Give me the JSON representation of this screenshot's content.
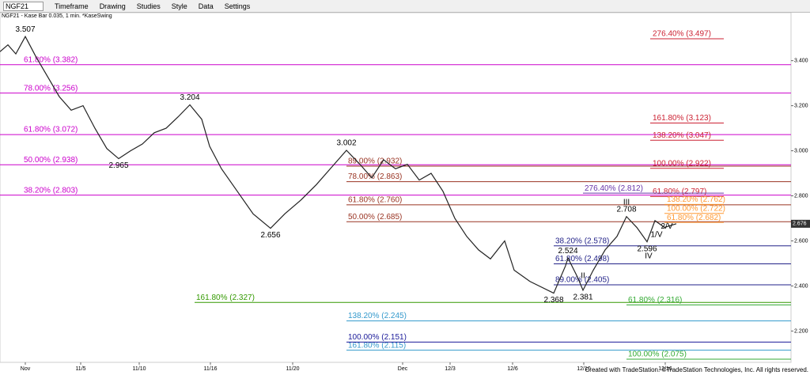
{
  "toolbar": {
    "symbol": "NGF21",
    "items": [
      "Timeframe",
      "Drawing",
      "Studies",
      "Style",
      "Data",
      "Settings"
    ]
  },
  "footer": "Created with TradeStation. ©TradeStation Technologies, Inc. All rights reserved.",
  "chart_data": {
    "type": "line",
    "title": "NGF21 - Kase Bar 0.035, 1 min. *KaseSwing",
    "color": "#222222",
    "x": [
      0,
      10,
      20,
      32,
      45,
      60,
      75,
      90,
      105,
      120,
      135,
      150,
      165,
      180,
      195,
      210,
      225,
      240,
      255,
      265,
      280,
      300,
      320,
      342,
      360,
      380,
      400,
      420,
      438,
      455,
      470,
      485,
      500,
      515,
      530,
      545,
      560,
      575,
      590,
      605,
      620,
      638,
      650,
      670,
      700,
      715,
      718,
      730,
      737,
      750,
      765,
      780,
      792,
      805,
      818,
      828,
      840,
      855
    ],
    "values": [
      3.44,
      3.47,
      3.43,
      3.507,
      3.42,
      3.33,
      3.24,
      3.18,
      3.2,
      3.1,
      3.01,
      2.965,
      3.0,
      3.03,
      3.08,
      3.1,
      3.15,
      3.204,
      3.14,
      3.02,
      2.92,
      2.82,
      2.72,
      2.656,
      2.72,
      2.78,
      2.85,
      2.93,
      3.002,
      2.94,
      2.88,
      2.96,
      2.92,
      2.94,
      2.87,
      2.9,
      2.82,
      2.7,
      2.62,
      2.56,
      2.52,
      2.6,
      2.47,
      2.42,
      2.368,
      2.49,
      2.524,
      2.44,
      2.381,
      2.47,
      2.56,
      2.62,
      2.708,
      2.66,
      2.596,
      2.69,
      2.66,
      2.676
    ],
    "last_price": 2.676,
    "xlim": [
      0,
      1000
    ],
    "ylim": [
      2.061,
      3.613
    ],
    "xticks": [
      {
        "value": 32,
        "label": "Nov"
      },
      {
        "value": 102,
        "label": "11/5"
      },
      {
        "value": 176,
        "label": "11/10"
      },
      {
        "value": 266,
        "label": "11/16"
      },
      {
        "value": 370,
        "label": "11/20"
      },
      {
        "value": 509,
        "label": "Dec"
      },
      {
        "value": 569,
        "label": "12/3"
      },
      {
        "value": 648,
        "label": "12/6"
      },
      {
        "value": 738,
        "label": "12/10"
      },
      {
        "value": 841,
        "label": "12/16"
      }
    ],
    "yticks": [
      {
        "value": 2.2,
        "label": "2.200"
      },
      {
        "value": 2.4,
        "label": "2.400"
      },
      {
        "value": 2.6,
        "label": "2.600"
      },
      {
        "value": 2.8,
        "label": "2.800"
      },
      {
        "value": 3.0,
        "label": "3.000"
      },
      {
        "value": 3.2,
        "label": "3.200"
      },
      {
        "value": 3.4,
        "label": "3.400"
      }
    ],
    "swings": [
      {
        "x": 32,
        "value": 3.507
      },
      {
        "x": 150,
        "value": 2.965
      },
      {
        "x": 240,
        "value": 3.204
      },
      {
        "x": 342,
        "value": 2.656
      },
      {
        "x": 438,
        "value": 3.002
      },
      {
        "x": 700,
        "value": 2.368
      },
      {
        "x": 718,
        "value": 2.524
      },
      {
        "x": 737,
        "value": 2.381
      },
      {
        "x": 792,
        "value": 2.708
      },
      {
        "x": 818,
        "value": 2.596
      }
    ],
    "wave_labels": [
      {
        "x": 792,
        "value": 2.708,
        "label": "III"
      },
      {
        "x": 830,
        "value": 2.69,
        "label": "1/V"
      },
      {
        "x": 843,
        "value": 2.6,
        "label": "2/V"
      },
      {
        "x": 820,
        "value": 2.596,
        "label": "IV"
      },
      {
        "x": 737,
        "value": 2.381,
        "label": "II"
      }
    ],
    "level_groups": [
      {
        "color": "#cc00cc",
        "start": 0,
        "end": 1000,
        "levels": [
          {
            "value": 3.382,
            "label": "61.80% (3.382)"
          },
          {
            "value": 3.256,
            "label": "78.00% (3.256)"
          },
          {
            "value": 3.072,
            "label": "61.80% (3.072)"
          },
          {
            "value": 2.938,
            "label": "50.00% (2.938)"
          },
          {
            "value": 2.803,
            "label": "38.20% (2.803)"
          }
        ]
      },
      {
        "color": "#339900",
        "start": 246,
        "end": 1000,
        "levels": [
          {
            "value": 2.327,
            "label": "161.80% (2.327)"
          }
        ]
      },
      {
        "color": "#3399cc",
        "start": 438,
        "end": 1000,
        "levels": [
          {
            "value": 2.245,
            "label": "138.20% (2.245)"
          },
          {
            "value": 2.115,
            "label": "161.80% (2.115)"
          }
        ]
      },
      {
        "color": "#1a1a99",
        "start": 438,
        "end": 1000,
        "levels": [
          {
            "value": 2.151,
            "label": "100.00% (2.151)"
          }
        ]
      },
      {
        "color": "#cc2233",
        "start": 822,
        "end": 915,
        "levels": [
          {
            "value": 3.497,
            "label": "276.40% (3.497)"
          },
          {
            "value": 3.123,
            "label": "161.80% (3.123)"
          },
          {
            "value": 3.047,
            "label": "138.20% (3.047)"
          },
          {
            "value": 2.922,
            "label": "100.00% (2.922)"
          },
          {
            "value": 2.797,
            "label": "61.80% (2.797)"
          }
        ]
      },
      {
        "color": "#993322",
        "start": 438,
        "end": 1000,
        "levels": [
          {
            "value": 2.932,
            "label": "89.00% (2.932)"
          },
          {
            "value": 2.863,
            "label": "78.00% (2.863)"
          },
          {
            "value": 2.76,
            "label": "61.80% (2.760)"
          },
          {
            "value": 2.685,
            "label": "50.00% (2.685)"
          }
        ]
      },
      {
        "color": "#ff9933",
        "start": 840,
        "end": 915,
        "levels": [
          {
            "value": 2.762,
            "label": "138.20% (2.762)"
          },
          {
            "value": 2.722,
            "label": "100.00% (2.722)"
          },
          {
            "value": 2.682,
            "label": "61.80% (2.682)"
          }
        ]
      },
      {
        "color": "#6633aa",
        "start": 737,
        "end": 915,
        "levels": [
          {
            "value": 2.812,
            "label": "276.40% (2.812)"
          }
        ]
      },
      {
        "color": "#222288",
        "start": 700,
        "end": 1000,
        "levels": [
          {
            "value": 2.578,
            "label": "38.20% (2.578)"
          },
          {
            "value": 2.498,
            "label": "61.80% (2.498)"
          },
          {
            "value": 2.405,
            "label": "89.00% (2.405)"
          }
        ]
      },
      {
        "color": "#33aa33",
        "start": 792,
        "end": 1000,
        "levels": [
          {
            "value": 2.316,
            "label": "61.80% (2.316)"
          },
          {
            "value": 2.075,
            "label": "100.00% (2.075)"
          }
        ]
      }
    ]
  }
}
